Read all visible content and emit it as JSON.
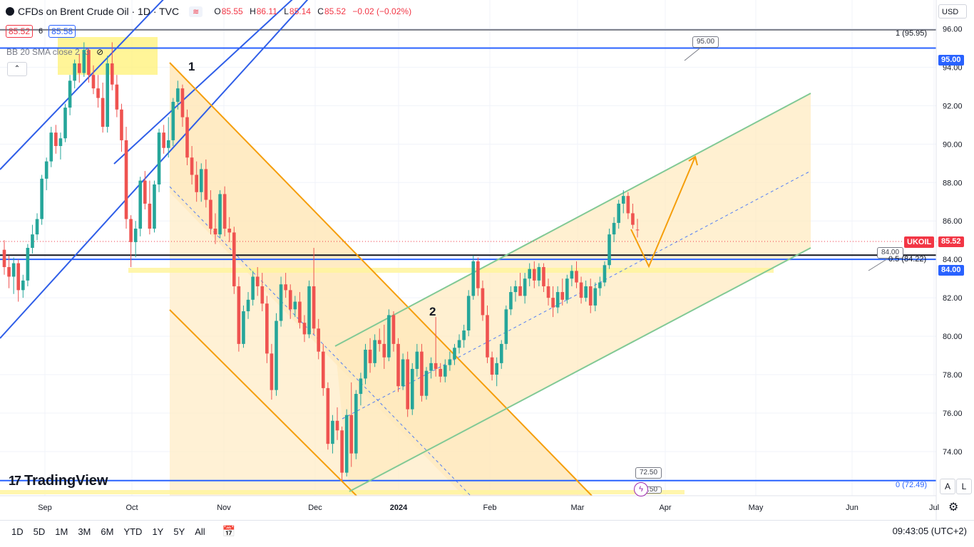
{
  "header": {
    "symbol_title": "CFDs on Brent Crude Oil · 1D · TVC",
    "compare_icon": "≋",
    "open_label": "O",
    "open": "85.55",
    "high_label": "H",
    "high": "86.11",
    "low_label": "L",
    "low": "85.14",
    "close_label": "C",
    "close": "85.52",
    "change": "−0.02 (−0.02%)"
  },
  "bid_ask": {
    "bid": "85.52",
    "spread": "6",
    "ask": "85.58"
  },
  "indicator": {
    "label": "BB 20 SMA close 2 -3"
  },
  "collapse_icon": "⌃",
  "logo": {
    "mark": "17",
    "text": "TradingView"
  },
  "currency": "USD",
  "chart_data": {
    "type": "candlestick",
    "symbol": "UKOIL",
    "current_price": "85.52",
    "y_ticks": [
      "96.00",
      "94.00",
      "92.00",
      "90.00",
      "88.00",
      "86.00",
      "84.00",
      "82.00",
      "80.00",
      "78.00",
      "76.00",
      "74.00"
    ],
    "x_ticks": [
      "Sep",
      "Oct",
      "Nov",
      "Dec",
      "2024",
      "Feb",
      "Mar",
      "Apr",
      "May",
      "Jun",
      "Jul"
    ],
    "ylim": [
      71.7,
      97.5
    ],
    "horizontal_levels": [
      {
        "price": 95.95,
        "label": "1 (95.95)",
        "color": "#787b86"
      },
      {
        "price": 95.0,
        "label": "95.00",
        "color": "#2962ff"
      },
      {
        "price": 84.22,
        "label": "0.5 (84.22)",
        "color": "#131722"
      },
      {
        "price": 84.0,
        "label": "84.00",
        "color": "#2962ff"
      },
      {
        "price": 72.49,
        "label": "0 (72.49)",
        "color": "#2962ff"
      }
    ],
    "callouts": [
      "95.00",
      "84.00",
      "72.50",
      "72.50"
    ],
    "wave_labels": [
      "1",
      "2"
    ],
    "candles": [
      [
        84.5,
        85.0,
        83.2,
        83.6
      ],
      [
        83.6,
        84.2,
        82.5,
        83.1
      ],
      [
        83.1,
        84.1,
        82.2,
        83.8
      ],
      [
        83.8,
        84.0,
        81.8,
        82.4
      ],
      [
        82.4,
        83.2,
        82.0,
        82.9
      ],
      [
        82.9,
        84.8,
        82.6,
        84.6
      ],
      [
        84.6,
        85.8,
        84.3,
        85.3
      ],
      [
        85.3,
        86.4,
        85.0,
        86.1
      ],
      [
        86.1,
        88.4,
        85.8,
        88.2
      ],
      [
        88.2,
        89.3,
        87.6,
        89.1
      ],
      [
        89.1,
        90.9,
        88.8,
        90.6
      ],
      [
        90.6,
        91.0,
        89.5,
        89.9
      ],
      [
        89.9,
        90.6,
        89.2,
        90.3
      ],
      [
        90.3,
        92.1,
        90.1,
        91.9
      ],
      [
        91.9,
        93.6,
        91.5,
        93.3
      ],
      [
        93.3,
        94.4,
        92.9,
        94.2
      ],
      [
        94.2,
        94.7,
        93.2,
        93.7
      ],
      [
        93.7,
        95.3,
        93.5,
        94.9
      ],
      [
        94.9,
        95.0,
        93.2,
        93.6
      ],
      [
        93.6,
        94.1,
        92.6,
        92.9
      ],
      [
        92.9,
        93.6,
        91.9,
        92.4
      ],
      [
        92.4,
        93.2,
        90.6,
        90.9
      ],
      [
        90.9,
        94.6,
        90.6,
        94.2
      ],
      [
        94.2,
        95.3,
        92.8,
        93.1
      ],
      [
        93.1,
        93.6,
        91.4,
        91.8
      ],
      [
        91.8,
        92.1,
        89.6,
        90.2
      ],
      [
        90.2,
        90.9,
        85.6,
        86.1
      ],
      [
        86.1,
        86.3,
        83.6,
        84.9
      ],
      [
        84.9,
        86.0,
        84.1,
        85.6
      ],
      [
        85.6,
        88.3,
        85.2,
        88.1
      ],
      [
        88.1,
        88.6,
        86.6,
        86.9
      ],
      [
        86.9,
        88.1,
        85.3,
        85.6
      ],
      [
        85.6,
        88.1,
        85.4,
        87.9
      ],
      [
        87.9,
        90.8,
        87.5,
        90.6
      ],
      [
        90.6,
        91.0,
        89.5,
        89.8
      ],
      [
        89.8,
        91.4,
        89.3,
        90.2
      ],
      [
        90.2,
        92.4,
        89.9,
        92.2
      ],
      [
        92.2,
        93.3,
        91.8,
        92.9
      ],
      [
        92.9,
        93.1,
        90.9,
        91.4
      ],
      [
        91.4,
        91.8,
        88.9,
        89.3
      ],
      [
        89.3,
        89.9,
        87.9,
        88.4
      ],
      [
        88.4,
        89.1,
        87.0,
        87.5
      ],
      [
        87.5,
        89.0,
        87.0,
        88.7
      ],
      [
        88.7,
        89.2,
        86.7,
        87.1
      ],
      [
        87.1,
        87.6,
        85.3,
        85.6
      ],
      [
        85.6,
        86.4,
        84.8,
        85.3
      ],
      [
        85.3,
        87.6,
        85.1,
        87.4
      ],
      [
        87.4,
        87.8,
        85.2,
        85.6
      ],
      [
        85.6,
        86.2,
        84.9,
        85.4
      ],
      [
        85.4,
        85.7,
        82.2,
        82.6
      ],
      [
        82.6,
        83.1,
        79.2,
        79.6
      ],
      [
        79.6,
        81.6,
        79.4,
        81.3
      ],
      [
        81.3,
        82.3,
        80.9,
        81.9
      ],
      [
        81.9,
        83.4,
        81.6,
        83.1
      ],
      [
        83.1,
        83.6,
        82.1,
        82.6
      ],
      [
        82.6,
        83.3,
        81.3,
        81.7
      ],
      [
        81.7,
        82.1,
        78.6,
        79.1
      ],
      [
        79.1,
        79.6,
        76.7,
        77.2
      ],
      [
        77.2,
        81.2,
        76.9,
        80.8
      ],
      [
        80.8,
        83.1,
        80.5,
        82.7
      ],
      [
        82.7,
        83.3,
        82.0,
        82.4
      ],
      [
        82.4,
        82.7,
        80.9,
        81.4
      ],
      [
        81.4,
        82.1,
        81.0,
        81.8
      ],
      [
        81.8,
        82.3,
        80.4,
        80.7
      ],
      [
        80.7,
        81.1,
        79.7,
        80.1
      ],
      [
        80.1,
        82.9,
        79.9,
        82.6
      ],
      [
        82.6,
        84.6,
        80.1,
        80.4
      ],
      [
        80.4,
        80.9,
        78.8,
        79.2
      ],
      [
        79.2,
        79.6,
        76.9,
        77.3
      ],
      [
        77.3,
        77.6,
        74.1,
        74.4
      ],
      [
        74.4,
        75.9,
        73.9,
        75.6
      ],
      [
        75.6,
        76.3,
        74.6,
        75.1
      ],
      [
        75.1,
        75.3,
        72.5,
        72.9
      ],
      [
        72.9,
        76.2,
        72.7,
        75.9
      ],
      [
        75.9,
        77.6,
        73.2,
        73.9
      ],
      [
        73.9,
        77.2,
        73.6,
        77.0
      ],
      [
        77.0,
        78.1,
        76.4,
        77.8
      ],
      [
        77.8,
        79.6,
        77.5,
        79.3
      ],
      [
        79.3,
        79.9,
        78.1,
        78.6
      ],
      [
        78.6,
        80.1,
        78.4,
        79.8
      ],
      [
        79.8,
        80.4,
        79.2,
        79.6
      ],
      [
        79.6,
        80.6,
        78.3,
        78.9
      ],
      [
        78.9,
        81.4,
        78.7,
        81.1
      ],
      [
        81.1,
        81.3,
        79.2,
        79.6
      ],
      [
        79.6,
        79.9,
        77.1,
        77.4
      ],
      [
        77.4,
        79.1,
        77.2,
        78.8
      ],
      [
        78.8,
        79.2,
        75.8,
        76.2
      ],
      [
        76.2,
        78.6,
        75.9,
        78.3
      ],
      [
        78.3,
        79.6,
        77.9,
        79.2
      ],
      [
        79.2,
        79.6,
        76.6,
        76.9
      ],
      [
        76.9,
        78.4,
        76.7,
        78.2
      ],
      [
        78.2,
        78.9,
        77.8,
        78.6
      ],
      [
        78.6,
        81.0,
        77.9,
        78.3
      ],
      [
        78.3,
        78.6,
        77.6,
        77.9
      ],
      [
        77.9,
        78.8,
        77.6,
        78.5
      ],
      [
        78.5,
        79.2,
        78.2,
        78.8
      ],
      [
        78.8,
        79.6,
        78.5,
        79.4
      ],
      [
        79.4,
        80.1,
        79.1,
        79.8
      ],
      [
        79.8,
        80.6,
        79.4,
        80.3
      ],
      [
        80.3,
        82.4,
        80.0,
        82.1
      ],
      [
        82.1,
        84.2,
        81.9,
        83.9
      ],
      [
        83.9,
        84.1,
        82.1,
        82.5
      ],
      [
        82.5,
        82.9,
        80.8,
        81.1
      ],
      [
        81.1,
        81.6,
        78.6,
        78.9
      ],
      [
        78.9,
        79.2,
        77.7,
        78.0
      ],
      [
        78.0,
        78.9,
        77.4,
        78.6
      ],
      [
        78.6,
        79.8,
        78.3,
        79.6
      ],
      [
        79.6,
        81.6,
        79.3,
        81.4
      ],
      [
        81.4,
        82.6,
        81.1,
        82.3
      ],
      [
        82.3,
        82.9,
        81.8,
        82.6
      ],
      [
        82.6,
        83.3,
        82.2,
        82.1
      ],
      [
        82.1,
        83.3,
        81.7,
        83.0
      ],
      [
        83.0,
        83.8,
        82.6,
        83.5
      ],
      [
        83.5,
        83.9,
        82.5,
        82.9
      ],
      [
        82.9,
        83.8,
        82.6,
        83.6
      ],
      [
        83.6,
        83.8,
        82.3,
        82.6
      ],
      [
        82.6,
        83.0,
        81.6,
        82.0
      ],
      [
        82.0,
        82.6,
        81.0,
        81.5
      ],
      [
        81.5,
        82.6,
        81.2,
        82.3
      ],
      [
        82.3,
        83.0,
        81.6,
        81.9
      ],
      [
        81.9,
        83.2,
        81.7,
        83.0
      ],
      [
        83.0,
        83.7,
        82.6,
        83.4
      ],
      [
        83.4,
        83.9,
        82.5,
        82.8
      ],
      [
        82.8,
        83.1,
        81.7,
        82.0
      ],
      [
        82.0,
        82.9,
        81.8,
        82.6
      ],
      [
        82.6,
        83.0,
        81.2,
        81.6
      ],
      [
        81.6,
        82.8,
        81.3,
        82.5
      ],
      [
        82.5,
        83.1,
        82.1,
        82.8
      ],
      [
        82.8,
        83.9,
        82.6,
        83.7
      ],
      [
        83.7,
        85.6,
        83.5,
        85.3
      ],
      [
        85.3,
        86.2,
        84.9,
        85.9
      ],
      [
        85.9,
        87.1,
        85.6,
        86.9
      ],
      [
        86.9,
        87.6,
        86.4,
        87.3
      ],
      [
        87.3,
        87.5,
        86.1,
        86.4
      ],
      [
        86.4,
        86.9,
        85.6,
        85.8
      ],
      [
        85.55,
        86.11,
        85.14,
        85.52
      ]
    ]
  }
}
